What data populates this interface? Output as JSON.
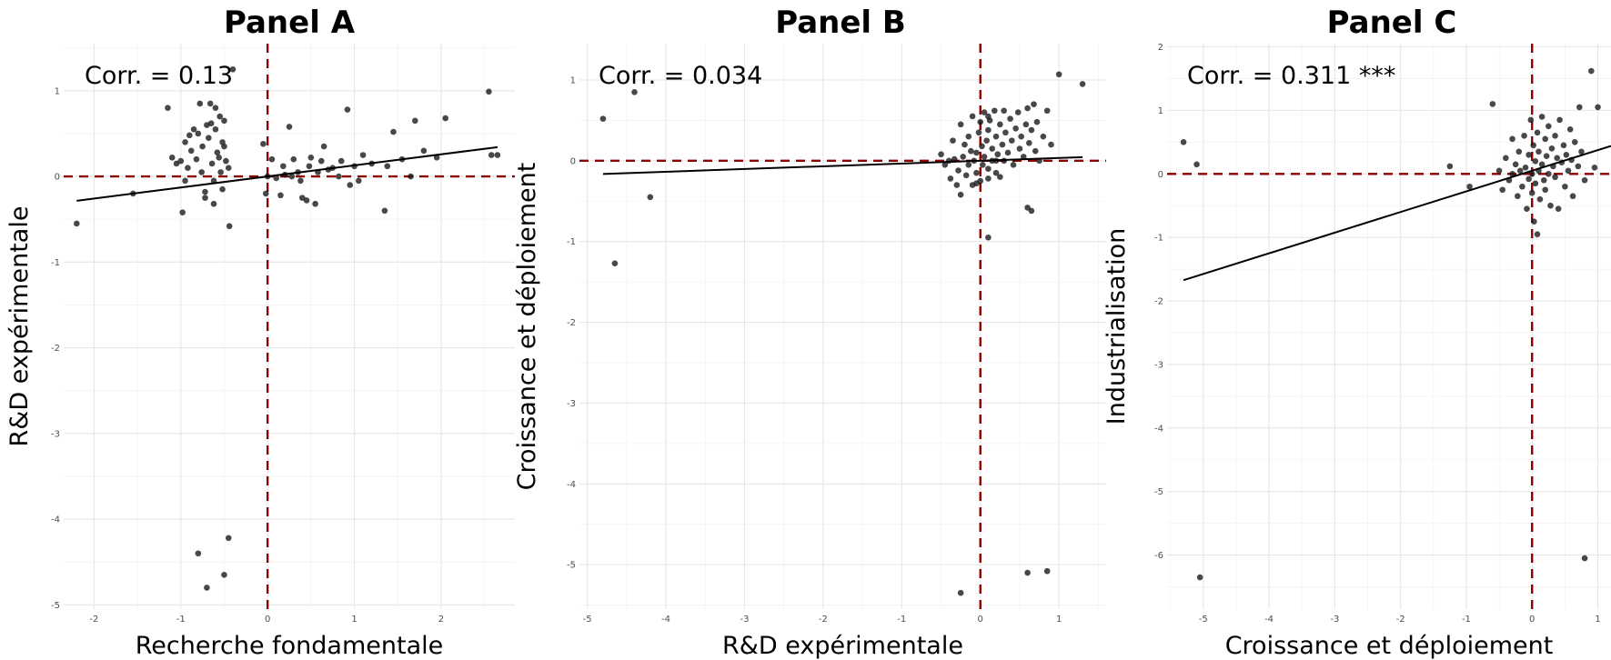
{
  "chart_data": [
    {
      "type": "scatter",
      "title": "Panel A",
      "xlabel": "Recherche fondamentale",
      "ylabel": "R&D expérimentale",
      "annotation": "Corr. = 0.13",
      "xlim": [
        -2.35,
        2.85
      ],
      "ylim": [
        -5.05,
        1.55
      ],
      "xticks": [
        -2,
        -1,
        0,
        1,
        2
      ],
      "yticks": [
        -5,
        -4,
        -3,
        -2,
        -1,
        0,
        1
      ],
      "xtick_labels": [
        "-2",
        "-1",
        "0",
        "1",
        "2"
      ],
      "ytick_labels": [
        "-5",
        "-4",
        "-3",
        "-2",
        "-1",
        "0",
        "1"
      ],
      "grid": true,
      "ref_lines": {
        "x": 0,
        "y": 0,
        "color": "#8b0000"
      },
      "fit": {
        "intercept": 0.0,
        "slope": 0.129,
        "x_range": [
          -2.2,
          2.65
        ]
      },
      "points": [
        [
          -2.2,
          -0.55
        ],
        [
          -1.55,
          -0.2
        ],
        [
          -1.15,
          0.8
        ],
        [
          -1.1,
          0.22
        ],
        [
          -1.05,
          0.15
        ],
        [
          -1.0,
          0.18
        ],
        [
          -0.95,
          0.4
        ],
        [
          -0.95,
          -0.05
        ],
        [
          -0.98,
          -0.42
        ],
        [
          -0.92,
          0.1
        ],
        [
          -0.9,
          0.48
        ],
        [
          -0.88,
          0.3
        ],
        [
          -0.85,
          0.55
        ],
        [
          -0.82,
          0.2
        ],
        [
          -0.8,
          0.5
        ],
        [
          -0.78,
          0.85
        ],
        [
          -0.76,
          0.05
        ],
        [
          -0.75,
          0.35
        ],
        [
          -0.72,
          -0.18
        ],
        [
          -0.72,
          -0.25
        ],
        [
          -0.7,
          0.6
        ],
        [
          -0.68,
          0.45
        ],
        [
          -0.66,
          0.85
        ],
        [
          -0.65,
          0.62
        ],
        [
          -0.64,
          0.15
        ],
        [
          -0.62,
          -0.05
        ],
        [
          -0.62,
          -0.32
        ],
        [
          -0.6,
          0.55
        ],
        [
          -0.6,
          0.8
        ],
        [
          -0.58,
          0.28
        ],
        [
          -0.56,
          0.22
        ],
        [
          -0.55,
          0.7
        ],
        [
          -0.54,
          0.05
        ],
        [
          -0.52,
          0.4
        ],
        [
          -0.52,
          -0.15
        ],
        [
          -0.5,
          0.65
        ],
        [
          -0.5,
          0.35
        ],
        [
          -0.48,
          0.18
        ],
        [
          -0.45,
          0.1
        ],
        [
          -0.44,
          -0.58
        ],
        [
          -0.4,
          1.25
        ],
        [
          -0.8,
          -4.4
        ],
        [
          -0.45,
          -4.22
        ],
        [
          -0.5,
          -4.65
        ],
        [
          -0.7,
          -4.8
        ],
        [
          -0.05,
          0.38
        ],
        [
          -0.02,
          -0.2
        ],
        [
          0.0,
          0.0
        ],
        [
          0.05,
          0.2
        ],
        [
          0.1,
          -0.02
        ],
        [
          0.15,
          -0.22
        ],
        [
          0.18,
          0.12
        ],
        [
          0.2,
          0.02
        ],
        [
          0.25,
          0.58
        ],
        [
          0.28,
          0.0
        ],
        [
          0.3,
          0.2
        ],
        [
          0.35,
          0.05
        ],
        [
          0.38,
          -0.05
        ],
        [
          0.4,
          -0.25
        ],
        [
          0.45,
          -0.28
        ],
        [
          0.48,
          0.12
        ],
        [
          0.5,
          0.22
        ],
        [
          0.55,
          -0.32
        ],
        [
          0.58,
          0.05
        ],
        [
          0.62,
          0.18
        ],
        [
          0.65,
          0.35
        ],
        [
          0.7,
          0.08
        ],
        [
          0.75,
          0.1
        ],
        [
          0.82,
          0.0
        ],
        [
          0.85,
          0.18
        ],
        [
          0.92,
          0.78
        ],
        [
          0.95,
          -0.1
        ],
        [
          1.0,
          0.12
        ],
        [
          1.05,
          -0.05
        ],
        [
          1.1,
          0.25
        ],
        [
          1.2,
          0.15
        ],
        [
          1.35,
          -0.4
        ],
        [
          1.38,
          0.12
        ],
        [
          1.45,
          0.52
        ],
        [
          1.55,
          0.2
        ],
        [
          1.65,
          0.0
        ],
        [
          1.7,
          0.65
        ],
        [
          1.8,
          0.3
        ],
        [
          1.95,
          0.22
        ],
        [
          2.05,
          0.68
        ],
        [
          2.55,
          0.99
        ],
        [
          2.58,
          0.25
        ],
        [
          2.65,
          0.25
        ]
      ]
    },
    {
      "type": "scatter",
      "title": "Panel B",
      "xlabel": "R&D expérimentale",
      "ylabel": "Croissance et déploiement",
      "annotation": "Corr. = 0.034",
      "xlim": [
        -5.1,
        1.6
      ],
      "ylim": [
        -5.55,
        1.45
      ],
      "xticks": [
        -5,
        -4,
        -3,
        -2,
        -1,
        0,
        1
      ],
      "yticks": [
        -5,
        -4,
        -3,
        -2,
        -1,
        0,
        1
      ],
      "xtick_labels": [
        "-5",
        "-4",
        "-3",
        "-2",
        "-1",
        "0",
        "1"
      ],
      "ytick_labels": [
        "-5",
        "-4",
        "-3",
        "-2",
        "-1",
        "0",
        "1"
      ],
      "grid": true,
      "ref_lines": {
        "x": 0,
        "y": 0,
        "color": "#8b0000"
      },
      "fit": {
        "intercept": 0.0,
        "slope": 0.034,
        "x_range": [
          -4.8,
          1.3
        ]
      },
      "points": [
        [
          -4.8,
          0.52
        ],
        [
          -4.4,
          0.85
        ],
        [
          -4.65,
          -1.27
        ],
        [
          -4.2,
          -0.45
        ],
        [
          -0.5,
          0.08
        ],
        [
          -0.45,
          -0.05
        ],
        [
          -0.4,
          0.0
        ],
        [
          -0.38,
          -0.22
        ],
        [
          -0.35,
          0.25
        ],
        [
          -0.33,
          0.02
        ],
        [
          -0.3,
          -0.3
        ],
        [
          -0.28,
          -0.12
        ],
        [
          -0.25,
          0.45
        ],
        [
          -0.25,
          -0.42
        ],
        [
          -0.22,
          0.05
        ],
        [
          -0.2,
          0.2
        ],
        [
          -0.18,
          -0.18
        ],
        [
          -0.15,
          0.3
        ],
        [
          -0.15,
          -0.05
        ],
        [
          -0.12,
          0.12
        ],
        [
          -0.1,
          0.55
        ],
        [
          -0.1,
          -0.3
        ],
        [
          -0.08,
          0.0
        ],
        [
          -0.05,
          0.1
        ],
        [
          -0.05,
          -0.15
        ],
        [
          -0.02,
          0.35
        ],
        [
          0.0,
          0.48
        ],
        [
          0.0,
          -0.25
        ],
        [
          0.02,
          0.18
        ],
        [
          0.03,
          -0.05
        ],
        [
          0.05,
          0.6
        ],
        [
          0.05,
          0.05
        ],
        [
          0.08,
          0.25
        ],
        [
          0.1,
          -0.1
        ],
        [
          0.1,
          0.38
        ],
        [
          0.12,
          0.5
        ],
        [
          0.15,
          0.15
        ],
        [
          0.15,
          0.0
        ],
        [
          0.18,
          0.62
        ],
        [
          0.2,
          0.3
        ],
        [
          0.22,
          0.08
        ],
        [
          0.25,
          0.45
        ],
        [
          0.25,
          -0.2
        ],
        [
          0.28,
          0.2
        ],
        [
          0.3,
          0.62
        ],
        [
          0.3,
          0.0
        ],
        [
          0.32,
          0.35
        ],
        [
          0.35,
          0.1
        ],
        [
          0.38,
          0.52
        ],
        [
          0.4,
          0.25
        ],
        [
          0.42,
          -0.05
        ],
        [
          0.45,
          0.4
        ],
        [
          0.48,
          0.6
        ],
        [
          0.5,
          0.15
        ],
        [
          0.52,
          0.3
        ],
        [
          0.55,
          0.05
        ],
        [
          0.58,
          0.45
        ],
        [
          0.6,
          0.65
        ],
        [
          0.62,
          0.22
        ],
        [
          0.65,
          0.38
        ],
        [
          0.68,
          0.7
        ],
        [
          0.7,
          0.12
        ],
        [
          0.72,
          0.48
        ],
        [
          0.75,
          0.0
        ],
        [
          0.8,
          0.3
        ],
        [
          0.85,
          0.62
        ],
        [
          0.9,
          0.2
        ],
        [
          0.1,
          -0.22
        ],
        [
          -0.05,
          -0.28
        ],
        [
          0.2,
          -0.15
        ],
        [
          0.6,
          -0.58
        ],
        [
          0.65,
          -0.62
        ],
        [
          0.1,
          -0.95
        ],
        [
          1.0,
          1.07
        ],
        [
          1.3,
          0.95
        ],
        [
          0.1,
          0.55
        ],
        [
          0.2,
          0.0
        ],
        [
          0.6,
          -5.1
        ],
        [
          0.85,
          -5.08
        ],
        [
          -0.25,
          -5.35
        ]
      ]
    },
    {
      "type": "scatter",
      "title": "Panel C",
      "xlabel": "Croissance et déploiement",
      "ylabel": "Industrialisation",
      "annotation": "Corr. = 0.311 ***",
      "xlim": [
        -5.55,
        1.2
      ],
      "ylim": [
        -6.85,
        2.05
      ],
      "xticks": [
        -5,
        -4,
        -3,
        -2,
        -1,
        0,
        1
      ],
      "yticks": [
        -6,
        -5,
        -4,
        -3,
        -2,
        -1,
        0,
        1,
        2
      ],
      "xtick_labels": [
        "-5",
        "-4",
        "-3",
        "-2",
        "-1",
        "0",
        "1"
      ],
      "ytick_labels": [
        "-6",
        "-5",
        "-4",
        "-3",
        "-2",
        "-1",
        "0",
        "1",
        "2"
      ],
      "grid": true,
      "ref_lines": {
        "x": 0,
        "y": 0,
        "color": "#8b0000"
      },
      "fit": {
        "intercept": 0.05,
        "slope": 0.325,
        "x_range": [
          -5.3,
          1.2
        ]
      },
      "points": [
        [
          -5.3,
          0.5
        ],
        [
          -5.1,
          0.15
        ],
        [
          -5.05,
          -6.35
        ],
        [
          -1.25,
          0.12
        ],
        [
          -0.95,
          -0.2
        ],
        [
          -0.6,
          1.1
        ],
        [
          -0.5,
          0.05
        ],
        [
          -0.45,
          -0.25
        ],
        [
          -0.4,
          0.25
        ],
        [
          -0.35,
          -0.1
        ],
        [
          -0.3,
          0.55
        ],
        [
          -0.3,
          0.0
        ],
        [
          -0.25,
          0.15
        ],
        [
          -0.22,
          -0.35
        ],
        [
          -0.2,
          0.35
        ],
        [
          -0.18,
          0.05
        ],
        [
          -0.15,
          -0.2
        ],
        [
          -0.12,
          0.6
        ],
        [
          -0.1,
          0.1
        ],
        [
          -0.08,
          -0.55
        ],
        [
          -0.05,
          0.3
        ],
        [
          -0.05,
          -0.08
        ],
        [
          -0.02,
          0.85
        ],
        [
          0.0,
          0.0
        ],
        [
          0.0,
          -0.3
        ],
        [
          0.02,
          0.45
        ],
        [
          0.03,
          -0.75
        ],
        [
          0.05,
          0.2
        ],
        [
          0.05,
          -0.15
        ],
        [
          0.08,
          0.65
        ],
        [
          0.08,
          -0.95
        ],
        [
          0.1,
          0.05
        ],
        [
          0.1,
          0.35
        ],
        [
          0.12,
          -0.4
        ],
        [
          0.15,
          0.9
        ],
        [
          0.15,
          0.15
        ],
        [
          0.18,
          -0.1
        ],
        [
          0.2,
          0.55
        ],
        [
          0.2,
          -0.25
        ],
        [
          0.22,
          0.28
        ],
        [
          0.25,
          0.0
        ],
        [
          0.25,
          0.75
        ],
        [
          0.28,
          -0.5
        ],
        [
          0.3,
          0.4
        ],
        [
          0.32,
          0.12
        ],
        [
          0.35,
          -0.05
        ],
        [
          0.35,
          0.6
        ],
        [
          0.38,
          0.25
        ],
        [
          0.4,
          -0.55
        ],
        [
          0.42,
          0.85
        ],
        [
          0.45,
          0.18
        ],
        [
          0.48,
          0.45
        ],
        [
          0.5,
          -0.2
        ],
        [
          0.52,
          0.3
        ],
        [
          0.55,
          0.05
        ],
        [
          0.58,
          0.7
        ],
        [
          0.6,
          0.22
        ],
        [
          0.62,
          -0.35
        ],
        [
          0.65,
          0.5
        ],
        [
          0.7,
          0.12
        ],
        [
          0.72,
          1.05
        ],
        [
          0.75,
          0.35
        ],
        [
          0.8,
          -0.1
        ],
        [
          0.9,
          1.62
        ],
        [
          1.0,
          1.05
        ],
        [
          0.95,
          0.1
        ],
        [
          0.8,
          -6.05
        ]
      ]
    }
  ]
}
